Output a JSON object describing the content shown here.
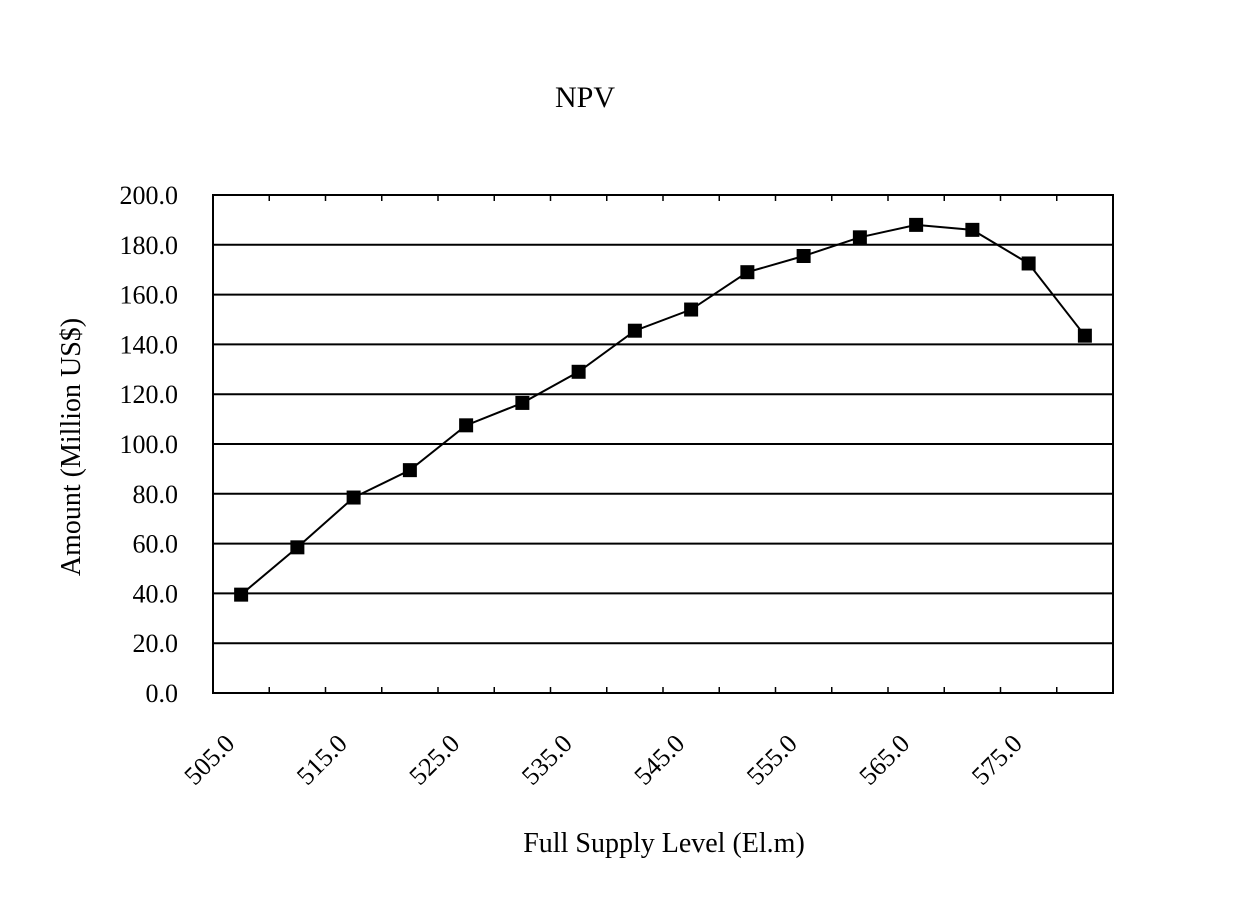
{
  "chart_data": {
    "type": "line",
    "title": "NPV",
    "xlabel": "Full Supply Level (El.m)",
    "ylabel": "Amount (Million US$)",
    "ylim": [
      0,
      200
    ],
    "xlim": [
      505,
      585
    ],
    "grid": "horizontal",
    "y_ticks": [
      "0.0",
      "20.0",
      "40.0",
      "60.0",
      "80.0",
      "100.0",
      "120.0",
      "140.0",
      "160.0",
      "180.0",
      "200.0"
    ],
    "x_ticks": [
      "505.0",
      "515.0",
      "525.0",
      "535.0",
      "545.0",
      "555.0",
      "565.0",
      "575.0"
    ],
    "series": [
      {
        "marker": "filled-square",
        "color": "#000000",
        "x": [
          505,
          510,
          515,
          520,
          525,
          530,
          535,
          540,
          545,
          550,
          555,
          560,
          565,
          570,
          575,
          580
        ],
        "y": [
          39.5,
          58.5,
          78.5,
          89.5,
          107.5,
          116.5,
          129.0,
          145.5,
          154.0,
          169.0,
          175.5,
          183.0,
          188.0,
          186.0,
          172.5,
          143.5
        ]
      }
    ]
  }
}
